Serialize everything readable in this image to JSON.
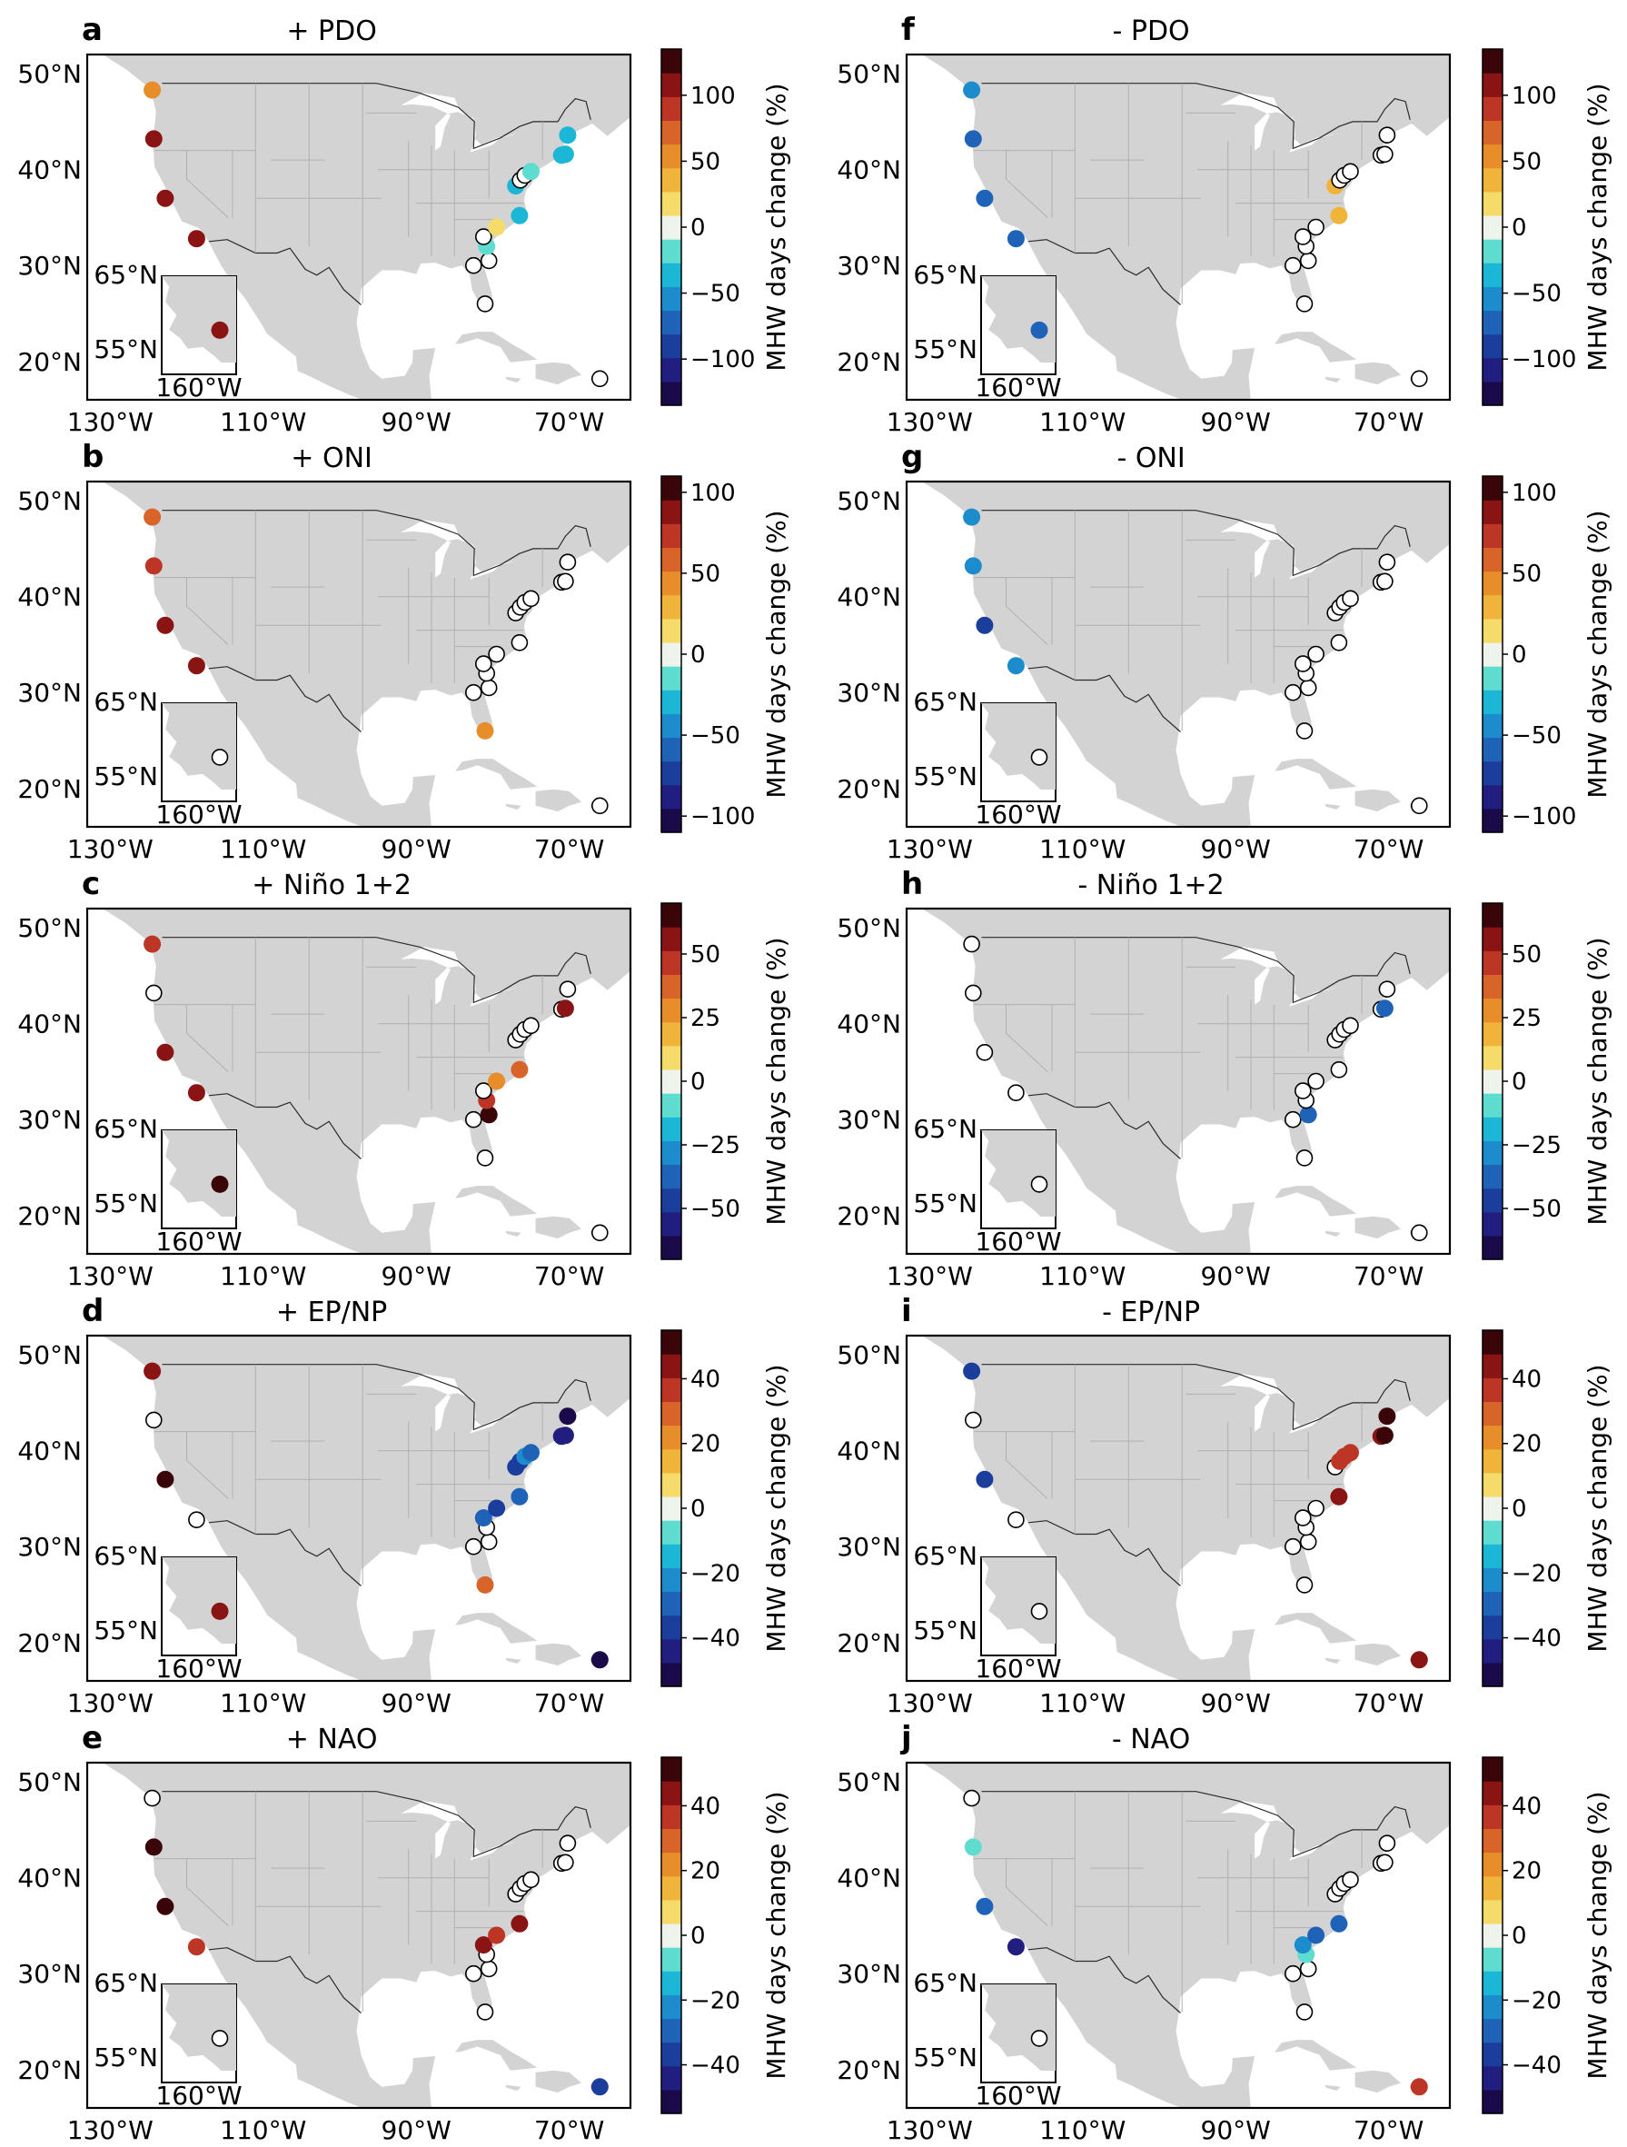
{
  "figure": {
    "lat_ticks": [
      "50°N",
      "40°N",
      "30°N",
      "20°N"
    ],
    "lon_ticks": [
      "130°W",
      "110°W",
      "90°W",
      "70°W"
    ],
    "inset_labels": {
      "lat_high": "65°N",
      "lat_low": "55°N",
      "lon": "160°W"
    },
    "colorbar_label": "MHW days change (%)"
  },
  "panels": [
    {
      "letter": "a",
      "title": "+ PDO",
      "scale": "s1",
      "markers": [
        [
          1,
          60
        ],
        [
          2,
          116
        ],
        [
          3,
          100
        ],
        [
          4,
          100
        ],
        [
          5,
          110
        ],
        [
          6,
          "h"
        ],
        [
          7,
          "h"
        ],
        [
          8,
          "h"
        ],
        [
          9,
          -20
        ],
        [
          10,
          "h"
        ],
        [
          11,
          10
        ],
        [
          12,
          -30
        ],
        [
          13,
          -40
        ],
        [
          14,
          "h"
        ],
        [
          15,
          "h"
        ],
        [
          16,
          -20
        ],
        [
          17,
          -30
        ],
        [
          18,
          -35
        ],
        [
          19,
          -30
        ],
        [
          20,
          "h"
        ]
      ]
    },
    {
      "letter": "f",
      "title": "- PDO",
      "scale": "s1",
      "markers": [
        [
          1,
          -50
        ],
        [
          2,
          -70
        ],
        [
          3,
          -70
        ],
        [
          4,
          -70
        ],
        [
          5,
          -80
        ],
        [
          6,
          "h"
        ],
        [
          7,
          "h"
        ],
        [
          8,
          "h"
        ],
        [
          9,
          "h"
        ],
        [
          10,
          "h"
        ],
        [
          11,
          "h"
        ],
        [
          12,
          30
        ],
        [
          13,
          40
        ],
        [
          14,
          "h"
        ],
        [
          15,
          "h"
        ],
        [
          16,
          "h"
        ],
        [
          17,
          "h"
        ],
        [
          18,
          "h"
        ],
        [
          19,
          "h"
        ],
        [
          20,
          "h"
        ]
      ]
    },
    {
      "letter": "b",
      "title": "+ ONI",
      "scale": "s2",
      "markers": [
        [
          1,
          60
        ],
        [
          2,
          70
        ],
        [
          3,
          90
        ],
        [
          4,
          90
        ],
        [
          5,
          "h"
        ],
        [
          6,
          "h"
        ],
        [
          7,
          40
        ],
        [
          8,
          "h"
        ],
        [
          9,
          "h"
        ],
        [
          10,
          "h"
        ],
        [
          11,
          "h"
        ],
        [
          12,
          "h"
        ],
        [
          13,
          "h"
        ],
        [
          14,
          "h"
        ],
        [
          15,
          "h"
        ],
        [
          16,
          "h"
        ],
        [
          17,
          "h"
        ],
        [
          18,
          "h"
        ],
        [
          19,
          "h"
        ],
        [
          20,
          "h"
        ]
      ]
    },
    {
      "letter": "g",
      "title": "- ONI",
      "scale": "s2",
      "markers": [
        [
          1,
          -50
        ],
        [
          2,
          -50
        ],
        [
          3,
          -80
        ],
        [
          4,
          -50
        ],
        [
          5,
          "h"
        ],
        [
          6,
          "h"
        ],
        [
          7,
          "h"
        ],
        [
          8,
          "h"
        ],
        [
          9,
          "h"
        ],
        [
          10,
          "h"
        ],
        [
          11,
          "h"
        ],
        [
          12,
          "h"
        ],
        [
          13,
          "h"
        ],
        [
          14,
          "h"
        ],
        [
          15,
          "h"
        ],
        [
          16,
          "h"
        ],
        [
          17,
          "h"
        ],
        [
          18,
          "h"
        ],
        [
          19,
          "h"
        ],
        [
          20,
          "h"
        ]
      ]
    },
    {
      "letter": "c",
      "title": "+ Niño 1+2",
      "scale": "s3",
      "markers": [
        [
          1,
          45
        ],
        [
          2,
          "h"
        ],
        [
          3,
          60
        ],
        [
          4,
          55
        ],
        [
          5,
          70
        ],
        [
          6,
          "h"
        ],
        [
          7,
          "h"
        ],
        [
          8,
          70
        ],
        [
          9,
          45
        ],
        [
          10,
          "h"
        ],
        [
          11,
          30
        ],
        [
          12,
          40
        ],
        [
          13,
          "h"
        ],
        [
          14,
          "h"
        ],
        [
          15,
          "h"
        ],
        [
          16,
          "h"
        ],
        [
          17,
          "h"
        ],
        [
          18,
          60
        ],
        [
          19,
          "h"
        ],
        [
          20,
          "h"
        ]
      ]
    },
    {
      "letter": "h",
      "title": "- Niño 1+2",
      "scale": "s3",
      "markers": [
        [
          1,
          "h"
        ],
        [
          2,
          "h"
        ],
        [
          3,
          "h"
        ],
        [
          4,
          "h"
        ],
        [
          5,
          "h"
        ],
        [
          6,
          "h"
        ],
        [
          7,
          "h"
        ],
        [
          8,
          -40
        ],
        [
          9,
          "h"
        ],
        [
          10,
          "h"
        ],
        [
          11,
          "h"
        ],
        [
          12,
          "h"
        ],
        [
          13,
          "h"
        ],
        [
          14,
          "h"
        ],
        [
          15,
          "h"
        ],
        [
          16,
          "h"
        ],
        [
          17,
          "h"
        ],
        [
          18,
          -40
        ],
        [
          19,
          "h"
        ],
        [
          20,
          "h"
        ]
      ]
    },
    {
      "letter": "d",
      "title": "+ EP/NP",
      "scale": "s4",
      "markers": [
        [
          1,
          45
        ],
        [
          2,
          "h"
        ],
        [
          3,
          55
        ],
        [
          4,
          "h"
        ],
        [
          5,
          45
        ],
        [
          6,
          "h"
        ],
        [
          7,
          30
        ],
        [
          8,
          "h"
        ],
        [
          9,
          "h"
        ],
        [
          10,
          -30
        ],
        [
          11,
          -40
        ],
        [
          12,
          -30
        ],
        [
          13,
          -35
        ],
        [
          14,
          -35
        ],
        [
          15,
          -25
        ],
        [
          16,
          -30
        ],
        [
          17,
          -45
        ],
        [
          18,
          -45
        ],
        [
          19,
          -50
        ],
        [
          20,
          -50
        ]
      ]
    },
    {
      "letter": "i",
      "title": "- EP/NP",
      "scale": "s4",
      "markers": [
        [
          1,
          -35
        ],
        [
          2,
          "h"
        ],
        [
          3,
          -40
        ],
        [
          4,
          "h"
        ],
        [
          5,
          "h"
        ],
        [
          6,
          "h"
        ],
        [
          7,
          "h"
        ],
        [
          8,
          "h"
        ],
        [
          9,
          "h"
        ],
        [
          10,
          "h"
        ],
        [
          11,
          "h"
        ],
        [
          12,
          45
        ],
        [
          13,
          "h"
        ],
        [
          14,
          40
        ],
        [
          15,
          40
        ],
        [
          16,
          35
        ],
        [
          17,
          45
        ],
        [
          18,
          50
        ],
        [
          19,
          50
        ],
        [
          20,
          45
        ]
      ]
    },
    {
      "letter": "e",
      "title": "+ NAO",
      "scale": "s4",
      "markers": [
        [
          1,
          "h"
        ],
        [
          2,
          50
        ],
        [
          3,
          50
        ],
        [
          4,
          35
        ],
        [
          5,
          "h"
        ],
        [
          6,
          "h"
        ],
        [
          7,
          "h"
        ],
        [
          8,
          "h"
        ],
        [
          9,
          "h"
        ],
        [
          10,
          45
        ],
        [
          11,
          40
        ],
        [
          12,
          45
        ],
        [
          13,
          "h"
        ],
        [
          14,
          "h"
        ],
        [
          15,
          "h"
        ],
        [
          16,
          "h"
        ],
        [
          17,
          "h"
        ],
        [
          18,
          "h"
        ],
        [
          19,
          "h"
        ],
        [
          20,
          -40
        ]
      ]
    },
    {
      "letter": "j",
      "title": "- NAO",
      "scale": "s4",
      "markers": [
        [
          1,
          "h"
        ],
        [
          2,
          -10
        ],
        [
          3,
          -30
        ],
        [
          4,
          -45
        ],
        [
          5,
          "h"
        ],
        [
          6,
          "h"
        ],
        [
          7,
          "h"
        ],
        [
          8,
          "h"
        ],
        [
          9,
          -10
        ],
        [
          10,
          -25
        ],
        [
          11,
          -30
        ],
        [
          12,
          -30
        ],
        [
          13,
          "h"
        ],
        [
          14,
          "h"
        ],
        [
          15,
          "h"
        ],
        [
          16,
          "h"
        ],
        [
          17,
          "h"
        ],
        [
          18,
          "h"
        ],
        [
          19,
          "h"
        ],
        [
          20,
          40
        ]
      ]
    }
  ],
  "sites": [
    [
      1,
      -124.5,
      48.3
    ],
    [
      2,
      -124.3,
      43.2
    ],
    [
      3,
      -122.8,
      37.0
    ],
    [
      4,
      -118.7,
      32.8
    ],
    [
      5,
      -161.0,
      58.0
    ],
    [
      6,
      -82.5,
      30.0
    ],
    [
      7,
      -81.0,
      26.0
    ],
    [
      8,
      -80.5,
      30.5
    ],
    [
      9,
      -80.8,
      32.0
    ],
    [
      10,
      -81.2,
      33.0
    ],
    [
      11,
      -79.5,
      34.0
    ],
    [
      12,
      -76.5,
      35.2
    ],
    [
      13,
      -77.0,
      38.3
    ],
    [
      14,
      -76.4,
      38.9
    ],
    [
      15,
      -75.8,
      39.4
    ],
    [
      16,
      -75.0,
      39.8
    ],
    [
      17,
      -71.0,
      41.5
    ],
    [
      18,
      -70.5,
      41.6
    ],
    [
      19,
      -70.2,
      43.6
    ],
    [
      20,
      -66.0,
      18.2
    ]
  ],
  "colorbars": {
    "s1": {
      "range": [
        -135,
        135
      ],
      "ticks": [
        100,
        50,
        0,
        -50,
        -100
      ],
      "tick_labels": [
        "100",
        "50",
        "0",
        "−50",
        "−100"
      ]
    },
    "s2": {
      "range": [
        -110,
        110
      ],
      "ticks": [
        100,
        50,
        0,
        -50,
        -100
      ],
      "tick_labels": [
        "100",
        "50",
        "0",
        "−50",
        "−100"
      ]
    },
    "s3": {
      "range": [
        -70,
        70
      ],
      "ticks": [
        50,
        25,
        0,
        -25,
        -50
      ],
      "tick_labels": [
        "50",
        "25",
        "0",
        "−25",
        "−50"
      ]
    },
    "s4": {
      "range": [
        -55,
        55
      ],
      "ticks": [
        40,
        20,
        0,
        -20,
        -40
      ],
      "tick_labels": [
        "40",
        "20",
        "0",
        "−20",
        "−40"
      ]
    }
  },
  "colormap": [
    "#1b0a4a",
    "#221e7f",
    "#1b3e9c",
    "#1f63b8",
    "#1c8ccc",
    "#1cb6d6",
    "#5fdcd0",
    "#eef3ec",
    "#f5dc6a",
    "#f0b43a",
    "#e78e2a",
    "#d9642a",
    "#bd3525",
    "#8a1414",
    "#3a0508"
  ]
}
